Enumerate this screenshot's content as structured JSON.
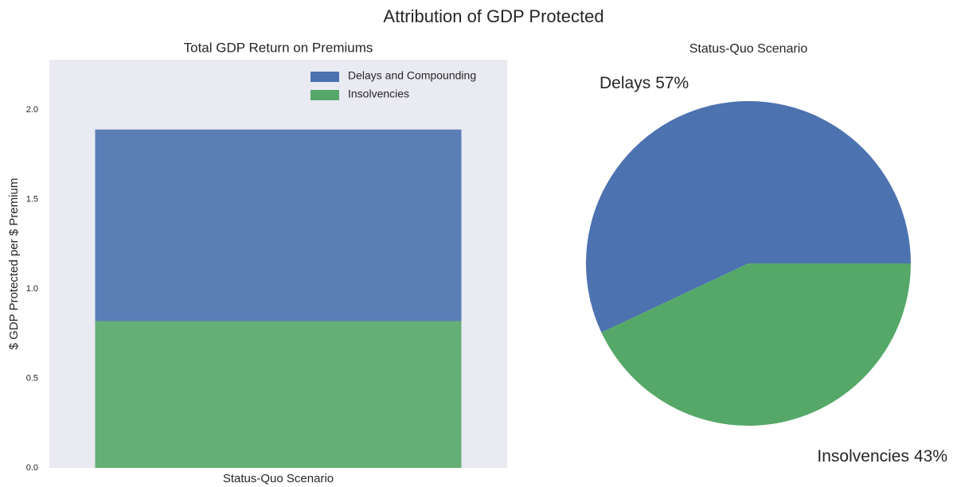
{
  "title": "Attribution of GDP Protected",
  "chart_data": [
    {
      "type": "bar",
      "stacked": true,
      "title": "Total GDP Return on Premiums",
      "ylabel": "$ GDP Protected per $ Premium",
      "categories": [
        "Status-Quo Scenario"
      ],
      "series": [
        {
          "name": "Delays and Compounding",
          "color": "#4c72b0",
          "values": [
            1.07
          ]
        },
        {
          "name": "Insolvencies",
          "color": "#55a868",
          "values": [
            0.82
          ]
        }
      ],
      "ylim": [
        0,
        2.28
      ],
      "yticks": [
        {
          "value": 0,
          "label": "0.0"
        },
        0.5,
        {
          "value": 1,
          "label": "1.0"
        },
        1.5,
        {
          "value": 2,
          "label": "2.0"
        }
      ],
      "grid": false,
      "legend": "upper right"
    },
    {
      "type": "pie",
      "title": "Status-Quo Scenario",
      "categories": [
        "Delays",
        "Insolvencies"
      ],
      "values": [
        57,
        43
      ],
      "value_labels": [
        "57%",
        "43%"
      ],
      "colors": [
        "#4c72b0",
        "#55a868"
      ]
    }
  ]
}
